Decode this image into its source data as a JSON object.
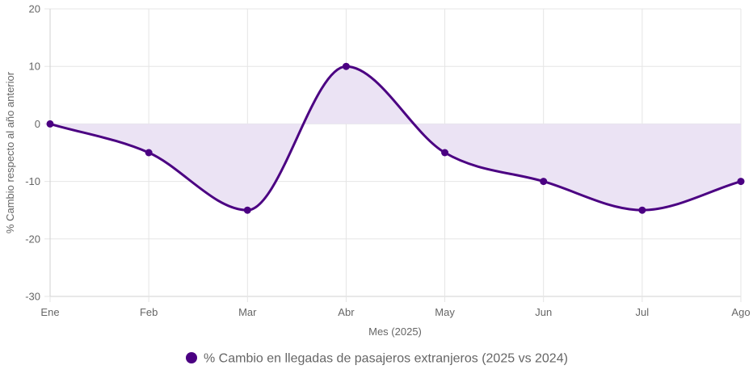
{
  "chart_data": {
    "type": "line",
    "title": "",
    "xlabel": "Mes (2025)",
    "ylabel": "% Cambio respecto al año anterior",
    "categories": [
      "Ene",
      "Feb",
      "Mar",
      "Abr",
      "May",
      "Jun",
      "Jul",
      "Ago"
    ],
    "series": [
      {
        "name": "% Cambio en llegadas de pasajeros extranjeros (2025 vs 2024)",
        "values": [
          0,
          -5,
          -15,
          10,
          -5,
          -10,
          -15,
          -10
        ],
        "color": "#4b0082",
        "fill_color": "#ebe3f4",
        "fill": "origin",
        "smooth": true
      }
    ],
    "ylim": [
      -30,
      20
    ],
    "yticks": [
      20,
      10,
      0,
      -10,
      -20,
      -30
    ],
    "grid": true,
    "legend_position": "bottom"
  }
}
